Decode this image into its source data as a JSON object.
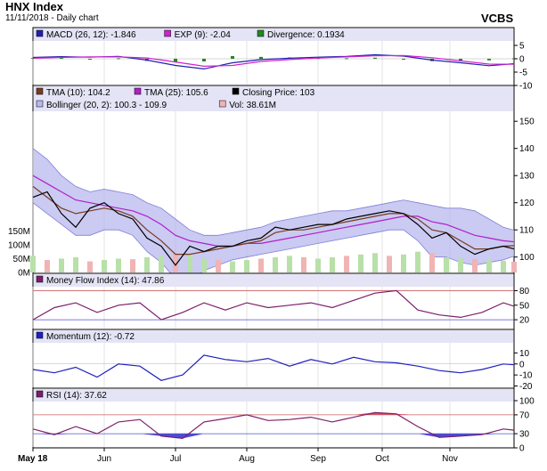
{
  "header": {
    "title": "HNX Index",
    "subtitle": "11/11/2018 - Daily chart",
    "brand": "VCBS"
  },
  "colors": {
    "panel_bg": "#ffffff",
    "legend_bg": "#e4e4f6",
    "macd_line": "#2020b0",
    "exp_line": "#d020d0",
    "divergence_pos": "#1f8a1f",
    "divergence_neg": "#1f8a1f",
    "tma10": "#7a3b1f",
    "tma25": "#b020c8",
    "close": "#000000",
    "bollinger_fill": "#b8b8ee",
    "bollinger_line": "#8080d8",
    "volume": "#b8e0a8",
    "volume_alt": "#f0b4b4",
    "mfi_line": "#7b1f6a",
    "ref_line": "#cc6060",
    "ref_line_low": "#5050d0",
    "momentum_line": "#2020c0",
    "rsi_line": "#7b1f6a",
    "rsi_over": "#e04060",
    "rsi_under": "#4a4ad8"
  },
  "chart_data": [
    {
      "type": "line",
      "id": "macd",
      "legend": [
        {
          "label": "MACD (26, 12): -1.846",
          "color": "#2020b0"
        },
        {
          "label": "EXP (9): -2.04",
          "color": "#d020d0"
        },
        {
          "label": "Divergence: 0.1934",
          "color": "#1f8a1f"
        }
      ],
      "y_ticks": [
        "5",
        "0",
        "-5",
        "-10"
      ],
      "ylim": [
        -10,
        7
      ],
      "x": [
        0,
        8,
        16,
        24,
        32,
        40,
        48,
        56,
        64,
        72,
        80,
        88,
        96,
        104,
        112,
        120,
        128,
        135
      ],
      "series": [
        {
          "name": "MACD",
          "values": [
            0.5,
            0.8,
            0.6,
            0.9,
            -0.5,
            -2.5,
            -3.8,
            -1.5,
            -0.3,
            0.2,
            0.6,
            0.9,
            1.5,
            1.0,
            -0.5,
            -1.5,
            -2.6,
            -1.846
          ]
        },
        {
          "name": "EXP",
          "values": [
            0.2,
            0.5,
            0.7,
            0.7,
            0.3,
            -1.2,
            -2.8,
            -2.5,
            -1.0,
            -0.3,
            0.3,
            0.7,
            1.1,
            1.2,
            0.4,
            -0.8,
            -2.0,
            -2.04
          ]
        }
      ],
      "divergence": [
        0.3,
        0.3,
        -0.1,
        0.2,
        -0.8,
        -1.3,
        -1.0,
        1.0,
        0.7,
        0.5,
        0.3,
        0.2,
        0.4,
        -0.2,
        -0.9,
        -0.7,
        -0.6,
        0.19
      ]
    },
    {
      "type": "line",
      "id": "price",
      "legend_row1": [
        {
          "label": "TMA (10): 104.2",
          "color": "#7a3b1f"
        },
        {
          "label": "TMA (25): 105.6",
          "color": "#b020c8"
        },
        {
          "label": "Closing Price: 103",
          "color": "#000000"
        }
      ],
      "legend_row2": [
        {
          "label": "Bollinger (20, 2): 100.3 - 109.9",
          "color": "#b8b8ee"
        },
        {
          "label": "Vol: 38.61M",
          "color": "#f0b4b4"
        }
      ],
      "y_ticks": [
        "150",
        "140",
        "130",
        "120",
        "110",
        "100"
      ],
      "ylim": [
        94,
        154
      ],
      "vol_ticks": [
        "150M",
        "100M",
        "50M",
        "0M"
      ],
      "vol_lim": [
        0,
        190
      ],
      "x": [
        0,
        4,
        8,
        12,
        16,
        20,
        24,
        28,
        32,
        36,
        40,
        44,
        48,
        52,
        56,
        60,
        64,
        68,
        72,
        76,
        80,
        84,
        88,
        92,
        96,
        100,
        104,
        108,
        112,
        116,
        120,
        124,
        128,
        132,
        135
      ],
      "series": [
        {
          "name": "Closing Price",
          "values": [
            122,
            124,
            116,
            111,
            118,
            120,
            116,
            114,
            107,
            104,
            97,
            104,
            102,
            104,
            104,
            106,
            107,
            111,
            110,
            111,
            112,
            112,
            114,
            115,
            116,
            117,
            116,
            112,
            107,
            109,
            104,
            101,
            103,
            104,
            103
          ]
        },
        {
          "name": "TMA (10)",
          "values": [
            126,
            122,
            118,
            116,
            117,
            118,
            117,
            115,
            110,
            106,
            101,
            101,
            102,
            103,
            104,
            105,
            106,
            109,
            110,
            110,
            111,
            112,
            113,
            114,
            115,
            116,
            116,
            114,
            110,
            109,
            106,
            103,
            103,
            104,
            104.2
          ]
        },
        {
          "name": "TMA (25)",
          "values": [
            130,
            127,
            124,
            121,
            120,
            119,
            118,
            117,
            115,
            112,
            108,
            106,
            105,
            104,
            104,
            105,
            105,
            106,
            107,
            108,
            109,
            110,
            111,
            112,
            113,
            114,
            115,
            115,
            113,
            112,
            110,
            108,
            107,
            106,
            105.6
          ]
        }
      ],
      "bollinger_upper": [
        140,
        136,
        130,
        126,
        124,
        125,
        124,
        123,
        120,
        118,
        114,
        110,
        108,
        108,
        109,
        110,
        111,
        113,
        114,
        115,
        116,
        117,
        117,
        118,
        119,
        120,
        121,
        120,
        119,
        118,
        118,
        117,
        114,
        111,
        109.9
      ],
      "bollinger_lower": [
        120,
        116,
        112,
        108,
        108,
        110,
        110,
        108,
        102,
        98,
        92,
        91,
        95,
        97,
        99,
        100,
        101,
        102,
        103,
        104,
        105,
        106,
        107,
        108,
        109,
        110,
        110,
        106,
        100,
        100,
        98,
        97,
        98,
        99,
        100.3
      ],
      "volume": [
        60,
        45,
        50,
        55,
        40,
        45,
        50,
        48,
        55,
        60,
        70,
        65,
        50,
        45,
        40,
        45,
        50,
        55,
        60,
        55,
        50,
        55,
        60,
        65,
        70,
        60,
        65,
        75,
        70,
        55,
        50,
        48,
        45,
        42,
        38.61
      ]
    },
    {
      "type": "line",
      "id": "mfi",
      "legend": [
        {
          "label": "Money Flow Index (14): 47.86",
          "color": "#7b1f6a"
        }
      ],
      "y_ticks": [
        "80",
        "50",
        "20"
      ],
      "ylim": [
        0,
        90
      ],
      "ref_lines": [
        80,
        20
      ],
      "x": [
        0,
        6,
        12,
        18,
        24,
        30,
        36,
        42,
        48,
        54,
        60,
        66,
        72,
        78,
        84,
        90,
        96,
        102,
        108,
        114,
        120,
        126,
        132,
        135
      ],
      "values": [
        20,
        45,
        55,
        35,
        50,
        55,
        20,
        35,
        55,
        40,
        55,
        45,
        50,
        55,
        45,
        60,
        75,
        80,
        40,
        30,
        25,
        35,
        55,
        47.86
      ]
    },
    {
      "type": "line",
      "id": "momentum",
      "legend": [
        {
          "label": "Momentum (12): -0.72",
          "color": "#2020c0"
        }
      ],
      "y_ticks": [
        "10",
        "0",
        "-10",
        "-20"
      ],
      "ylim": [
        -22,
        20
      ],
      "x": [
        0,
        6,
        12,
        18,
        24,
        30,
        36,
        42,
        48,
        54,
        60,
        66,
        72,
        78,
        84,
        90,
        96,
        102,
        108,
        114,
        120,
        126,
        132,
        135
      ],
      "values": [
        -5,
        -8,
        -3,
        -12,
        0,
        -2,
        -15,
        -10,
        8,
        4,
        2,
        5,
        -2,
        4,
        0,
        6,
        2,
        1,
        -2,
        -6,
        -8,
        -5,
        0,
        -0.72
      ]
    },
    {
      "type": "line",
      "id": "rsi",
      "legend": [
        {
          "label": "RSI (14): 37.62",
          "color": "#7b1f6a"
        }
      ],
      "y_ticks": [
        "100",
        "70",
        "30",
        "0"
      ],
      "ylim": [
        0,
        100
      ],
      "ref_lines": [
        70,
        30
      ],
      "x": [
        0,
        6,
        12,
        18,
        24,
        30,
        36,
        42,
        48,
        54,
        60,
        66,
        72,
        78,
        84,
        90,
        96,
        102,
        108,
        114,
        120,
        126,
        132,
        135
      ],
      "values": [
        40,
        28,
        45,
        30,
        55,
        60,
        25,
        20,
        55,
        62,
        70,
        58,
        60,
        65,
        55,
        65,
        75,
        72,
        45,
        22,
        25,
        28,
        40,
        37.62
      ]
    }
  ],
  "x_axis": {
    "labels": [
      "May 18",
      "Jun",
      "Jul",
      "Aug",
      "Sep",
      "Oct",
      "Nov"
    ],
    "positions": [
      0,
      20,
      40,
      60,
      80,
      98,
      117
    ],
    "domain": [
      0,
      135
    ]
  }
}
